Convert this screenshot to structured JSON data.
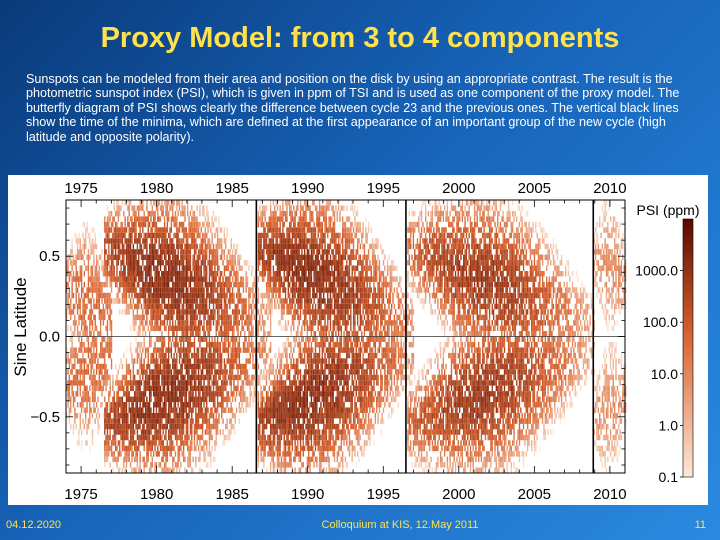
{
  "slide": {
    "title": "Proxy Model: from 3 to 4 components",
    "body": "Sunspots can be modeled from their area and position on the disk by using an appropriate contrast. The result is the photometric sunspot index (PSI), which is given in ppm of TSI and is used as one component of the proxy model. The butterfly diagram of PSI shows clearly the difference between cycle 23 and the previous ones. The vertical black lines show the time of the minima, which are defined at the first appearance of an important group of the new cycle (high latitude and opposite polarity)."
  },
  "footer": {
    "date": "04.12.2020",
    "event": "Colloquium at KIS, 12.May 2011",
    "page": "11"
  },
  "colors": {
    "plot_background": "#ffffff",
    "low": "#fde8d8",
    "mid": "#d9632f",
    "high": "#5a0a00",
    "minima_lines": "#000000"
  },
  "chart_data": {
    "type": "heatmap",
    "title": "",
    "xlabel": "",
    "ylabel": "Sine Latitude",
    "xlim": [
      1974,
      2011
    ],
    "ylim": [
      -0.85,
      0.85
    ],
    "x_ticks": [
      1975,
      1980,
      1985,
      1990,
      1995,
      2000,
      2005,
      2010
    ],
    "x_tick_labels": [
      "1975",
      "1980",
      "1985",
      "1990",
      "1995",
      "2000",
      "2005",
      "2010"
    ],
    "y_ticks": [
      0.5,
      0.0,
      -0.5
    ],
    "y_tick_labels": [
      "0.5",
      "0.0",
      "−0.5"
    ],
    "zero_line": true,
    "minima": [
      1986.6,
      1996.5,
      2008.9
    ],
    "colorbar": {
      "label": "PSI (ppm)",
      "scale": "log",
      "range": [
        0.1,
        10000
      ],
      "ticks": [
        1000.0,
        100.0,
        10.0,
        1.0,
        0.1
      ],
      "tick_labels": [
        "1000.0",
        "100.0",
        "10.0",
        "1.0",
        "0.1"
      ]
    },
    "cycles": [
      {
        "start": 1974.0,
        "end": 1977.0,
        "lat_start": 0.3,
        "lat_end": 0.12,
        "peak": 1975.0,
        "amp": 70
      },
      {
        "start": 1976.5,
        "end": 1987.5,
        "lat_start": 0.55,
        "lat_end": 0.08,
        "peak": 1980.3,
        "amp": 1500
      },
      {
        "start": 1986.6,
        "end": 1997.0,
        "lat_start": 0.55,
        "lat_end": 0.08,
        "peak": 1990.0,
        "amp": 1500
      },
      {
        "start": 1996.5,
        "end": 2009.0,
        "lat_start": 0.55,
        "lat_end": 0.08,
        "peak": 2001.5,
        "amp": 800
      },
      {
        "start": 2008.9,
        "end": 2011.0,
        "lat_start": 0.5,
        "lat_end": 0.38,
        "peak": 2011.0,
        "amp": 15
      }
    ]
  }
}
